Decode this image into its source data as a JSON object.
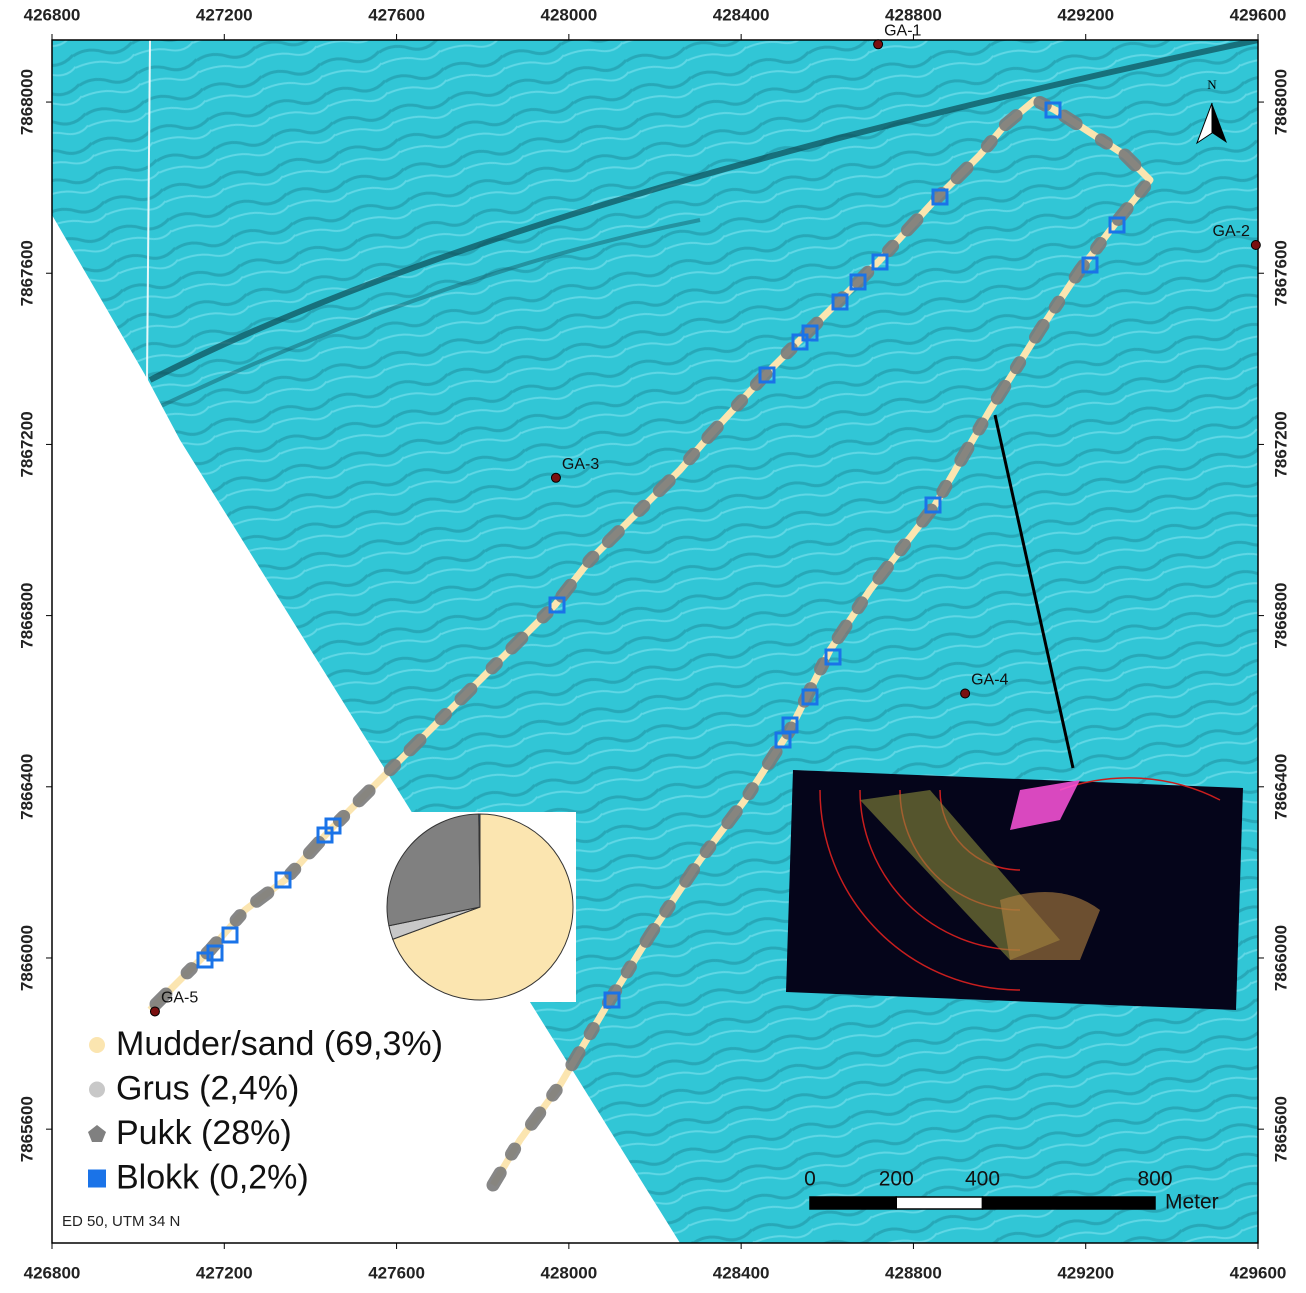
{
  "map": {
    "xlim": [
      426800,
      429600
    ],
    "ylim": [
      7865334,
      7868145
    ],
    "xticks": [
      426800,
      427200,
      427600,
      428000,
      428400,
      428800,
      429200,
      429600
    ],
    "yticks": [
      7865600,
      7866000,
      7866400,
      7866800,
      7867200,
      7867600,
      7868000
    ],
    "stations": [
      {
        "label": "GA-1",
        "x": 428718,
        "y": 7868135
      },
      {
        "label": "GA-2",
        "x": 429595,
        "y": 7867666
      },
      {
        "label": "GA-3",
        "x": 427970,
        "y": 7867122
      },
      {
        "label": "GA-4",
        "x": 428920,
        "y": 7866618
      },
      {
        "label": "GA-5",
        "x": 427039,
        "y": 7865875
      }
    ],
    "north_label": "N",
    "crs": "ED 50, UTM 34 N",
    "legend": [
      {
        "label": "Mudder/sand (69,3%)",
        "color": "#fbe5b0"
      },
      {
        "label": "Grus (2,4%)",
        "color": "#c8c8c8"
      },
      {
        "label": "Pukk (28%)",
        "color": "#808080"
      },
      {
        "label": "Blokk (0,2%)",
        "color": "#1a73e8"
      }
    ],
    "pie": {
      "values": [
        69.3,
        2.4,
        28,
        0.2
      ]
    },
    "scale_bar": {
      "ticks": [
        0,
        200,
        400,
        800
      ],
      "unit": "Meter"
    }
  }
}
